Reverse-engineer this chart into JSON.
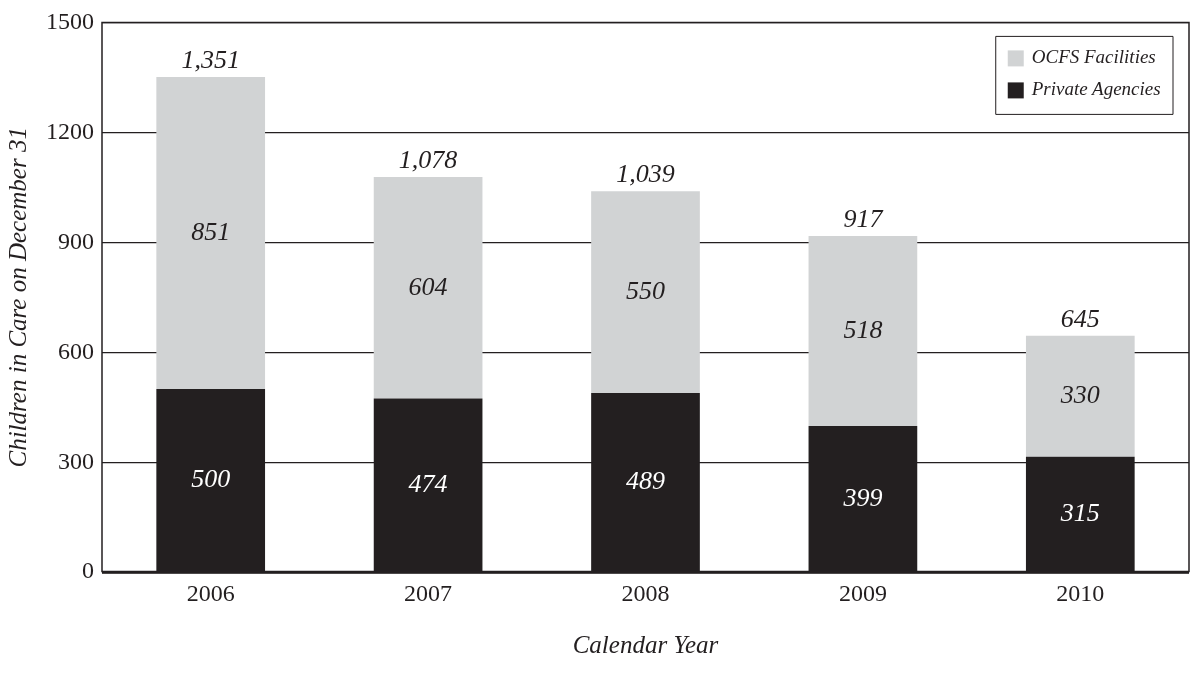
{
  "chart_data": {
    "type": "bar",
    "stacked": true,
    "xlabel": "Calendar Year",
    "ylabel": "Children in Care on December 31",
    "categories": [
      "2006",
      "2007",
      "2008",
      "2009",
      "2010"
    ],
    "series": [
      {
        "name": "Private Agencies",
        "color": "#231f20",
        "values": [
          500,
          474,
          489,
          399,
          315
        ]
      },
      {
        "name": "OCFS Facilities",
        "color": "#d1d3d4",
        "values": [
          851,
          604,
          550,
          518,
          330
        ]
      }
    ],
    "totals": [
      "1,351",
      "1,078",
      "1,039",
      "917",
      "645"
    ],
    "data_labels": true,
    "ylim": [
      0,
      1500
    ],
    "yticks": [
      0,
      300,
      600,
      900,
      1200,
      1500
    ],
    "grid": "y",
    "legend": "top right"
  }
}
